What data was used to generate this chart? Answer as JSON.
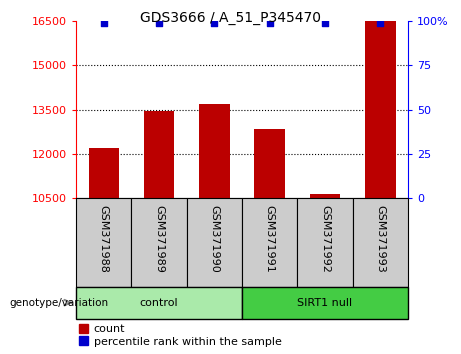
{
  "title": "GDS3666 / A_51_P345470",
  "samples": [
    "GSM371988",
    "GSM371989",
    "GSM371990",
    "GSM371991",
    "GSM371992",
    "GSM371993"
  ],
  "counts": [
    12200,
    13450,
    13700,
    12850,
    10650,
    17200
  ],
  "percentile_ranks": [
    99,
    99,
    99,
    99,
    99,
    99
  ],
  "bar_color": "#BB0000",
  "dot_color": "#0000CC",
  "ylim_left": [
    10500,
    16500
  ],
  "yticks_left": [
    10500,
    12000,
    13500,
    15000,
    16500
  ],
  "ylim_right": [
    0,
    100
  ],
  "yticks_right": [
    0,
    25,
    50,
    75,
    100
  ],
  "grid_color": "#000000",
  "grid_values": [
    12000,
    13500,
    15000
  ],
  "bar_width": 0.55,
  "xlabel_area_color": "#cccccc",
  "control_bg": "#aaeaaa",
  "sirt1_bg": "#44cc44",
  "label_fontsize": 8,
  "tick_fontsize": 8,
  "title_fontsize": 10,
  "legend_fontsize": 8
}
